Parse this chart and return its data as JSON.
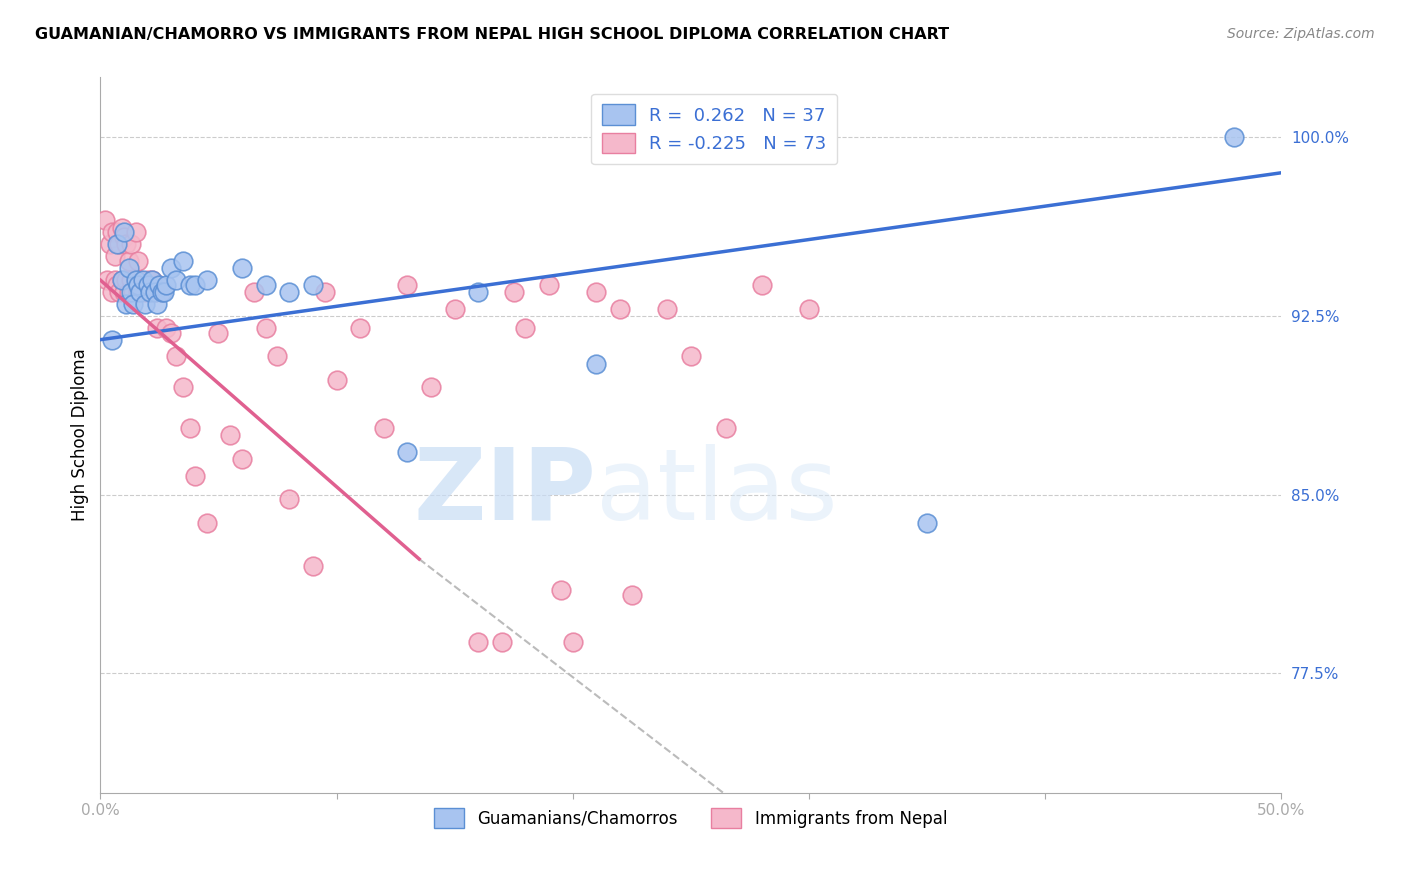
{
  "title": "GUAMANIAN/CHAMORRO VS IMMIGRANTS FROM NEPAL HIGH SCHOOL DIPLOMA CORRELATION CHART",
  "source": "Source: ZipAtlas.com",
  "ylabel": "High School Diploma",
  "xmin": 0.0,
  "xmax": 0.5,
  "ymin": 0.725,
  "ymax": 1.025,
  "yticks": [
    0.775,
    0.85,
    0.925,
    1.0
  ],
  "ytick_labels": [
    "77.5%",
    "85.0%",
    "92.5%",
    "100.0%"
  ],
  "xticks": [
    0.0,
    0.1,
    0.2,
    0.3,
    0.4,
    0.5
  ],
  "xtick_labels": [
    "0.0%",
    "",
    "",
    "",
    "",
    "50.0%"
  ],
  "legend_r1": "R =  0.262   N = 37",
  "legend_r2": "R = -0.225   N = 73",
  "blue_fill": "#a8c4f0",
  "pink_fill": "#f5b8cb",
  "blue_edge": "#5b8fd4",
  "pink_edge": "#e87fa0",
  "blue_line_color": "#3b6fd4",
  "pink_line_color": "#e06090",
  "watermark_zip": "ZIP",
  "watermark_atlas": "atlas",
  "blue_scatter_x": [
    0.005,
    0.007,
    0.009,
    0.01,
    0.011,
    0.012,
    0.013,
    0.014,
    0.015,
    0.016,
    0.017,
    0.018,
    0.019,
    0.02,
    0.021,
    0.022,
    0.023,
    0.024,
    0.025,
    0.026,
    0.027,
    0.028,
    0.03,
    0.032,
    0.035,
    0.038,
    0.04,
    0.045,
    0.06,
    0.07,
    0.08,
    0.09,
    0.13,
    0.16,
    0.21,
    0.35,
    0.48
  ],
  "blue_scatter_y": [
    0.915,
    0.955,
    0.94,
    0.96,
    0.93,
    0.945,
    0.935,
    0.93,
    0.94,
    0.938,
    0.935,
    0.94,
    0.93,
    0.938,
    0.935,
    0.94,
    0.935,
    0.93,
    0.938,
    0.935,
    0.935,
    0.938,
    0.945,
    0.94,
    0.948,
    0.938,
    0.938,
    0.94,
    0.945,
    0.938,
    0.935,
    0.938,
    0.868,
    0.935,
    0.905,
    0.838,
    1.0
  ],
  "pink_scatter_x": [
    0.002,
    0.003,
    0.004,
    0.005,
    0.005,
    0.006,
    0.006,
    0.007,
    0.007,
    0.008,
    0.008,
    0.009,
    0.009,
    0.01,
    0.01,
    0.011,
    0.011,
    0.012,
    0.012,
    0.013,
    0.013,
    0.014,
    0.015,
    0.015,
    0.016,
    0.016,
    0.017,
    0.018,
    0.019,
    0.02,
    0.021,
    0.022,
    0.023,
    0.024,
    0.025,
    0.026,
    0.028,
    0.03,
    0.032,
    0.035,
    0.038,
    0.04,
    0.045,
    0.05,
    0.055,
    0.06,
    0.065,
    0.07,
    0.075,
    0.08,
    0.09,
    0.095,
    0.1,
    0.11,
    0.12,
    0.13,
    0.14,
    0.15,
    0.16,
    0.17,
    0.175,
    0.18,
    0.19,
    0.195,
    0.2,
    0.21,
    0.22,
    0.225,
    0.24,
    0.25,
    0.265,
    0.28,
    0.3
  ],
  "pink_scatter_y": [
    0.965,
    0.94,
    0.955,
    0.935,
    0.96,
    0.94,
    0.95,
    0.938,
    0.96,
    0.935,
    0.955,
    0.94,
    0.962,
    0.935,
    0.958,
    0.94,
    0.955,
    0.935,
    0.948,
    0.94,
    0.955,
    0.935,
    0.94,
    0.96,
    0.935,
    0.948,
    0.94,
    0.938,
    0.935,
    0.94,
    0.935,
    0.94,
    0.935,
    0.92,
    0.938,
    0.935,
    0.92,
    0.918,
    0.908,
    0.895,
    0.878,
    0.858,
    0.838,
    0.918,
    0.875,
    0.865,
    0.935,
    0.92,
    0.908,
    0.848,
    0.82,
    0.935,
    0.898,
    0.92,
    0.878,
    0.938,
    0.895,
    0.928,
    0.788,
    0.788,
    0.935,
    0.92,
    0.938,
    0.81,
    0.788,
    0.935,
    0.928,
    0.808,
    0.928,
    0.908,
    0.878,
    0.938,
    0.928
  ]
}
